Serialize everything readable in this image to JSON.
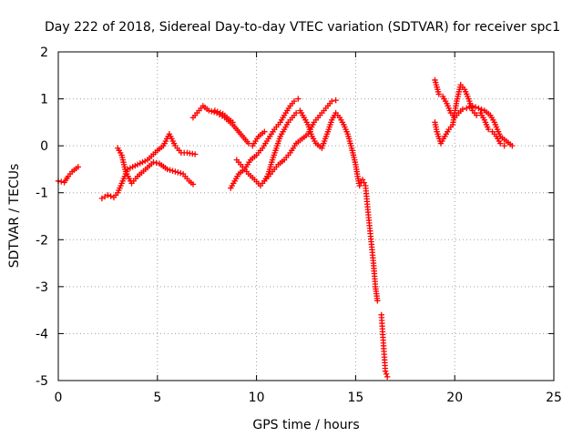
{
  "chart_data": {
    "type": "scatter",
    "title": "Day 222 of 2018, Sidereal Day-to-day VTEC variation (SDTVAR) for receiver spc1",
    "xlabel": "GPS time / hours",
    "ylabel": "SDTVAR / TECUs",
    "xlim": [
      0,
      25
    ],
    "ylim": [
      -5,
      2
    ],
    "xticks": [
      0,
      5,
      10,
      15,
      20,
      25
    ],
    "xtick_labels": [
      "0",
      "5",
      "10",
      "15",
      "20",
      "25"
    ],
    "yticks": [
      -5,
      -4,
      -3,
      -2,
      -1,
      0,
      1,
      2
    ],
    "ytick_labels": [
      "-5",
      "-4",
      "-3",
      "-2",
      "-1",
      "0",
      "1",
      "2"
    ],
    "grid": true,
    "marker": "+",
    "color": "#ff0000",
    "series": [
      {
        "name": "SDTVAR",
        "segments": [
          [
            [
              0,
              -0.75
            ],
            [
              0.3,
              -0.78
            ],
            [
              0.5,
              -0.65
            ],
            [
              0.7,
              -0.55
            ],
            [
              1.0,
              -0.45
            ]
          ],
          [
            [
              2.2,
              -1.12
            ],
            [
              2.5,
              -1.05
            ],
            [
              2.8,
              -1.1
            ],
            [
              3.0,
              -1.0
            ],
            [
              3.2,
              -0.8
            ],
            [
              3.5,
              -0.5
            ],
            [
              4.0,
              -0.4
            ],
            [
              4.5,
              -0.3
            ],
            [
              5.0,
              -0.1
            ],
            [
              5.3,
              0.0
            ],
            [
              5.6,
              0.25
            ],
            [
              5.9,
              0.0
            ],
            [
              6.2,
              -0.15
            ],
            [
              6.5,
              -0.15
            ],
            [
              6.9,
              -0.18
            ]
          ],
          [
            [
              3.0,
              -0.05
            ],
            [
              3.2,
              -0.2
            ],
            [
              3.4,
              -0.55
            ],
            [
              3.7,
              -0.8
            ],
            [
              4.0,
              -0.65
            ],
            [
              4.4,
              -0.5
            ],
            [
              4.8,
              -0.35
            ],
            [
              5.1,
              -0.38
            ],
            [
              5.5,
              -0.5
            ],
            [
              5.9,
              -0.55
            ],
            [
              6.3,
              -0.6
            ],
            [
              6.6,
              -0.75
            ],
            [
              6.8,
              -0.82
            ]
          ],
          [
            [
              6.8,
              0.6
            ],
            [
              7.0,
              0.7
            ],
            [
              7.3,
              0.85
            ],
            [
              7.6,
              0.75
            ],
            [
              8.0,
              0.7
            ],
            [
              8.4,
              0.6
            ],
            [
              8.8,
              0.45
            ],
            [
              9.2,
              0.25
            ],
            [
              9.6,
              0.05
            ],
            [
              9.8,
              0.0
            ],
            [
              10.1,
              0.2
            ],
            [
              10.4,
              0.3
            ]
          ],
          [
            [
              7.9,
              0.75
            ],
            [
              8.3,
              0.68
            ],
            [
              8.8,
              0.5
            ]
          ],
          [
            [
              8.7,
              -0.9
            ],
            [
              8.9,
              -0.75
            ],
            [
              9.1,
              -0.6
            ],
            [
              9.4,
              -0.5
            ],
            [
              9.7,
              -0.3
            ],
            [
              10.0,
              -0.2
            ],
            [
              10.3,
              -0.05
            ],
            [
              10.6,
              0.15
            ],
            [
              10.9,
              0.35
            ],
            [
              11.2,
              0.5
            ],
            [
              11.4,
              0.65
            ],
            [
              11.7,
              0.85
            ],
            [
              11.9,
              0.95
            ],
            [
              12.1,
              1.0
            ]
          ],
          [
            [
              9.0,
              -0.3
            ],
            [
              9.3,
              -0.45
            ],
            [
              9.6,
              -0.6
            ],
            [
              9.9,
              -0.72
            ],
            [
              10.2,
              -0.85
            ],
            [
              10.5,
              -0.7
            ],
            [
              10.8,
              -0.55
            ],
            [
              11.1,
              -0.4
            ],
            [
              11.4,
              -0.3
            ],
            [
              11.7,
              -0.15
            ],
            [
              12.0,
              0.05
            ],
            [
              12.3,
              0.15
            ],
            [
              12.6,
              0.25
            ],
            [
              12.9,
              0.5
            ],
            [
              13.2,
              0.65
            ],
            [
              13.5,
              0.8
            ],
            [
              13.8,
              0.95
            ],
            [
              14.0,
              0.97
            ]
          ],
          [
            [
              10.4,
              -0.75
            ],
            [
              10.6,
              -0.6
            ],
            [
              10.8,
              -0.3
            ],
            [
              11.0,
              -0.05
            ],
            [
              11.2,
              0.2
            ],
            [
              11.4,
              0.35
            ],
            [
              11.6,
              0.5
            ],
            [
              11.8,
              0.6
            ],
            [
              12.0,
              0.7
            ],
            [
              12.2,
              0.75
            ],
            [
              12.4,
              0.6
            ],
            [
              12.6,
              0.45
            ],
            [
              12.8,
              0.2
            ],
            [
              13.0,
              0.05
            ],
            [
              13.3,
              -0.05
            ],
            [
              13.6,
              0.3
            ],
            [
              13.8,
              0.55
            ],
            [
              14.0,
              0.7
            ],
            [
              14.2,
              0.6
            ],
            [
              14.4,
              0.45
            ],
            [
              14.6,
              0.25
            ],
            [
              14.8,
              -0.05
            ],
            [
              15.0,
              -0.4
            ],
            [
              15.1,
              -0.65
            ],
            [
              15.2,
              -0.85
            ],
            [
              15.35,
              -0.72
            ],
            [
              15.5,
              -0.85
            ],
            [
              15.6,
              -1.3
            ],
            [
              15.7,
              -1.7
            ],
            [
              15.8,
              -2.1
            ],
            [
              15.9,
              -2.5
            ],
            [
              16.0,
              -3.0
            ],
            [
              16.1,
              -3.3
            ]
          ],
          [
            [
              16.3,
              -3.6
            ],
            [
              16.35,
              -3.9
            ],
            [
              16.4,
              -4.2
            ],
            [
              16.45,
              -4.5
            ],
            [
              16.5,
              -4.8
            ],
            [
              16.6,
              -4.92
            ]
          ],
          [
            [
              19.0,
              1.4
            ],
            [
              19.2,
              1.1
            ],
            [
              19.4,
              1.05
            ],
            [
              19.6,
              0.9
            ],
            [
              19.8,
              0.7
            ],
            [
              20.0,
              0.6
            ],
            [
              20.2,
              0.7
            ],
            [
              20.4,
              0.78
            ],
            [
              20.6,
              0.8
            ],
            [
              20.9,
              0.85
            ],
            [
              21.2,
              0.8
            ],
            [
              21.5,
              0.75
            ],
            [
              21.8,
              0.65
            ],
            [
              22.0,
              0.5
            ],
            [
              22.3,
              0.2
            ],
            [
              22.6,
              0.1
            ],
            [
              22.9,
              0.0
            ]
          ],
          [
            [
              19.0,
              0.5
            ],
            [
              19.1,
              0.3
            ],
            [
              19.3,
              0.05
            ],
            [
              19.5,
              0.2
            ],
            [
              19.7,
              0.35
            ],
            [
              19.9,
              0.45
            ],
            [
              20.1,
              0.95
            ],
            [
              20.3,
              1.3
            ],
            [
              20.5,
              1.2
            ],
            [
              20.7,
              1.0
            ],
            [
              20.9,
              0.75
            ],
            [
              21.1,
              0.65
            ],
            [
              21.3,
              0.7
            ],
            [
              21.5,
              0.55
            ],
            [
              21.7,
              0.35
            ],
            [
              21.9,
              0.3
            ],
            [
              22.1,
              0.2
            ],
            [
              22.3,
              0.05
            ],
            [
              22.5,
              0.0
            ]
          ]
        ]
      }
    ]
  }
}
